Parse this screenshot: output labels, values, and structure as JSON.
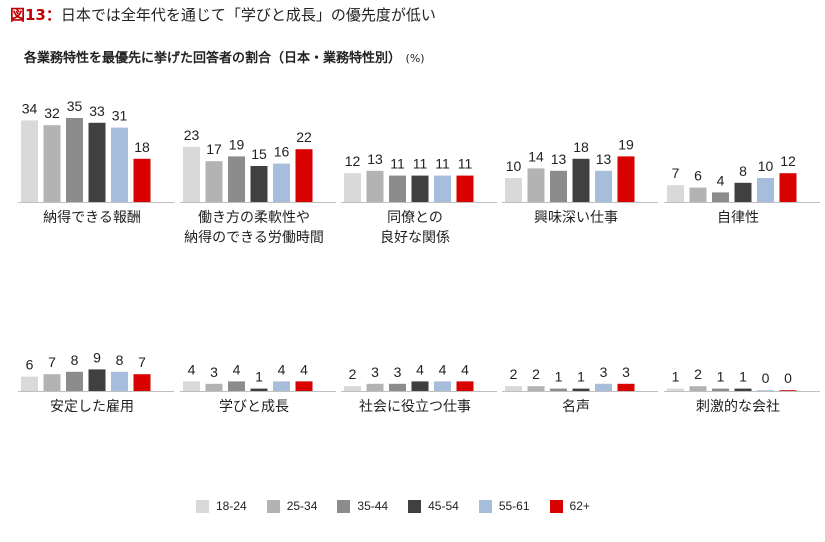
{
  "figure": {
    "number": "図13：",
    "title": "日本では全年代を通じて「学びと成長」の優先度が低い",
    "subtitle": "各業務特性を最優先に挙げた回答者の割合（日本・業務特性別）",
    "unit": "(%)"
  },
  "chart_data": {
    "type": "bar",
    "title": "各業務特性を最優先に挙げた回答者の割合（日本・業務特性別）",
    "unit": "%",
    "series_names": [
      "18-24",
      "25-34",
      "35-44",
      "45-54",
      "55-61",
      "62+"
    ],
    "colors": [
      "#d9d9d9",
      "#b3b3b3",
      "#8c8c8c",
      "#404040",
      "#a6bddb",
      "#d90000"
    ],
    "legend_position": "bottom",
    "grid": false,
    "panels": [
      {
        "category": [
          "納得できる報酬"
        ],
        "values": [
          34,
          32,
          35,
          33,
          31,
          18
        ]
      },
      {
        "category": [
          "働き方の柔軟性や",
          "納得のできる労働時間"
        ],
        "values": [
          23,
          17,
          19,
          15,
          16,
          22
        ]
      },
      {
        "category": [
          "同僚との",
          "良好な関係"
        ],
        "values": [
          12,
          13,
          11,
          11,
          11,
          11
        ]
      },
      {
        "category": [
          "興味深い仕事"
        ],
        "values": [
          10,
          14,
          13,
          18,
          13,
          19
        ]
      },
      {
        "category": [
          "自律性"
        ],
        "values": [
          7,
          6,
          4,
          8,
          10,
          12
        ]
      },
      {
        "category": [
          "安定した雇用"
        ],
        "values": [
          6,
          7,
          8,
          9,
          8,
          7
        ]
      },
      {
        "category": [
          "学びと成長"
        ],
        "values": [
          4,
          3,
          4,
          1,
          4,
          4
        ]
      },
      {
        "category": [
          "社会に役立つ仕事"
        ],
        "values": [
          2,
          3,
          3,
          4,
          4,
          4
        ]
      },
      {
        "category": [
          "名声"
        ],
        "values": [
          2,
          2,
          1,
          1,
          3,
          3
        ]
      },
      {
        "category": [
          "刺激的な会社"
        ],
        "values": [
          1,
          2,
          1,
          1,
          0,
          0
        ]
      }
    ]
  }
}
